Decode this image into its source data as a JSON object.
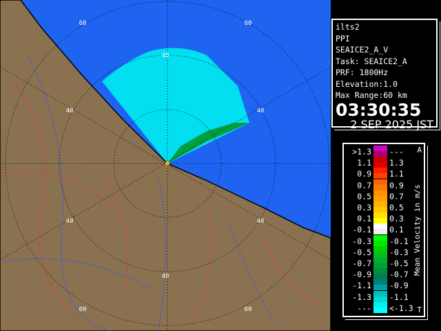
{
  "map": {
    "range_labels": [
      "40",
      "60"
    ],
    "colors": {
      "sea": "#1e64f0",
      "land": "#8a7250",
      "coast": "#000000",
      "rivers": "#d84040",
      "roads": "#4a5adc",
      "echo": "#00e0f0"
    }
  },
  "info": {
    "radar": "ilts2",
    "mode": "PPI",
    "product": "SEAICE2_A_V",
    "task": "Task: SEAICE2_A",
    "prf": "PRF: 1800Hz",
    "elevation": "Elevation:1.0",
    "max_range": "Max Range:60 km",
    "time": "03:30:35",
    "date": "2 SEP 2025 JST"
  },
  "legend": {
    "unit": "Mean Velocity in m/s",
    "tag_top": "A",
    "tag_bottom": "T",
    "rows": [
      {
        "left": ">1.3",
        "right": "---",
        "colors": [
          "#d000c8",
          "#b00070"
        ]
      },
      {
        "left": "1.1",
        "right": "1.3",
        "colors": [
          "#c80000",
          "#e00000"
        ]
      },
      {
        "left": "0.9",
        "right": "1.1",
        "colors": [
          "#ff2000",
          "#ff4000"
        ]
      },
      {
        "left": "0.7",
        "right": "0.9",
        "colors": [
          "#ff6000",
          "#ff7800"
        ]
      },
      {
        "left": "0.5",
        "right": "0.7",
        "colors": [
          "#ff9000",
          "#ffa000"
        ]
      },
      {
        "left": "0.3",
        "right": "0.5",
        "colors": [
          "#ffb000",
          "#ffc800"
        ]
      },
      {
        "left": "0.1",
        "right": "0.3",
        "colors": [
          "#ffe000",
          "#ffff00"
        ]
      },
      {
        "left": "-0.1",
        "right": "0.1",
        "colors": [
          "#ffffff",
          "#f0f0f0"
        ]
      },
      {
        "left": "-0.3",
        "right": "-0.1",
        "colors": [
          "#00ff00",
          "#00e800"
        ]
      },
      {
        "left": "-0.5",
        "right": "-0.3",
        "colors": [
          "#00d000",
          "#00c020"
        ]
      },
      {
        "left": "-0.7",
        "right": "-0.5",
        "colors": [
          "#00b030",
          "#00a038"
        ]
      },
      {
        "left": "-0.9",
        "right": "-0.7",
        "colors": [
          "#009040",
          "#008048"
        ]
      },
      {
        "left": "-1.1",
        "right": "-0.9",
        "colors": [
          "#008080",
          "#00a0a0"
        ]
      },
      {
        "left": "-1.3",
        "right": "-1.1",
        "colors": [
          "#00c0c0",
          "#00d8d8"
        ]
      },
      {
        "left": "---",
        "right": "<-1.3",
        "colors": [
          "#00f0f0",
          "#00ffff"
        ]
      }
    ]
  }
}
